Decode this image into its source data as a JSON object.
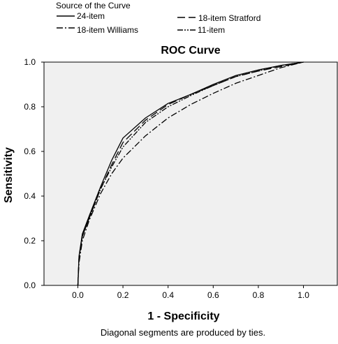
{
  "legend": {
    "title": "Source of the Curve",
    "entries": [
      {
        "label": "24-item",
        "dash": "solid"
      },
      {
        "label": "18-item Stratford",
        "dash": "longdash"
      },
      {
        "label": "18-item Williams",
        "dash": "dashdot"
      },
      {
        "label": "11-item",
        "dash": "dashdotdot"
      }
    ]
  },
  "chart_data": {
    "type": "line",
    "title": "ROC Curve",
    "xlabel": "1 - Specificity",
    "ylabel": "Sensitivity",
    "footnote": "Diagonal segments are produced by ties.",
    "xlim": [
      -0.15,
      1.15
    ],
    "ylim": [
      0.0,
      1.0
    ],
    "x_ticks": [
      "0.0",
      "0.2",
      "0.4",
      "0.6",
      "0.8",
      "1.0"
    ],
    "y_ticks": [
      "0.0",
      "0.2",
      "0.4",
      "0.6",
      "0.8",
      "1.0"
    ],
    "grid": false,
    "legend_position": "top",
    "colors": {
      "plot_background": "#f0f0f0",
      "line": "#000000"
    },
    "series": [
      {
        "name": "24-item",
        "x": [
          0.0,
          0.005,
          0.02,
          0.05,
          0.1,
          0.15,
          0.2,
          0.3,
          0.4,
          0.5,
          0.6,
          0.7,
          0.8,
          0.9,
          1.0
        ],
        "y": [
          0.0,
          0.13,
          0.23,
          0.31,
          0.44,
          0.56,
          0.66,
          0.75,
          0.815,
          0.855,
          0.9,
          0.94,
          0.965,
          0.985,
          1.0
        ]
      },
      {
        "name": "18-item Stratford",
        "x": [
          0.0,
          0.005,
          0.02,
          0.05,
          0.1,
          0.15,
          0.2,
          0.3,
          0.4,
          0.5,
          0.6,
          0.7,
          0.8,
          0.9,
          1.0
        ],
        "y": [
          0.0,
          0.12,
          0.22,
          0.3,
          0.43,
          0.54,
          0.64,
          0.74,
          0.81,
          0.855,
          0.895,
          0.935,
          0.96,
          0.98,
          1.0
        ]
      },
      {
        "name": "18-item Williams",
        "x": [
          0.0,
          0.005,
          0.02,
          0.05,
          0.1,
          0.15,
          0.2,
          0.3,
          0.4,
          0.5,
          0.6,
          0.7,
          0.8,
          0.9,
          1.0
        ],
        "y": [
          0.0,
          0.1,
          0.2,
          0.29,
          0.41,
          0.5,
          0.57,
          0.67,
          0.75,
          0.81,
          0.86,
          0.905,
          0.94,
          0.975,
          1.0
        ]
      },
      {
        "name": "11-item",
        "x": [
          0.0,
          0.005,
          0.02,
          0.05,
          0.1,
          0.15,
          0.2,
          0.3,
          0.4,
          0.5,
          0.6,
          0.7,
          0.8,
          0.9,
          1.0
        ],
        "y": [
          0.0,
          0.12,
          0.22,
          0.3,
          0.43,
          0.53,
          0.62,
          0.73,
          0.8,
          0.85,
          0.895,
          0.935,
          0.96,
          0.985,
          1.0
        ]
      }
    ]
  }
}
